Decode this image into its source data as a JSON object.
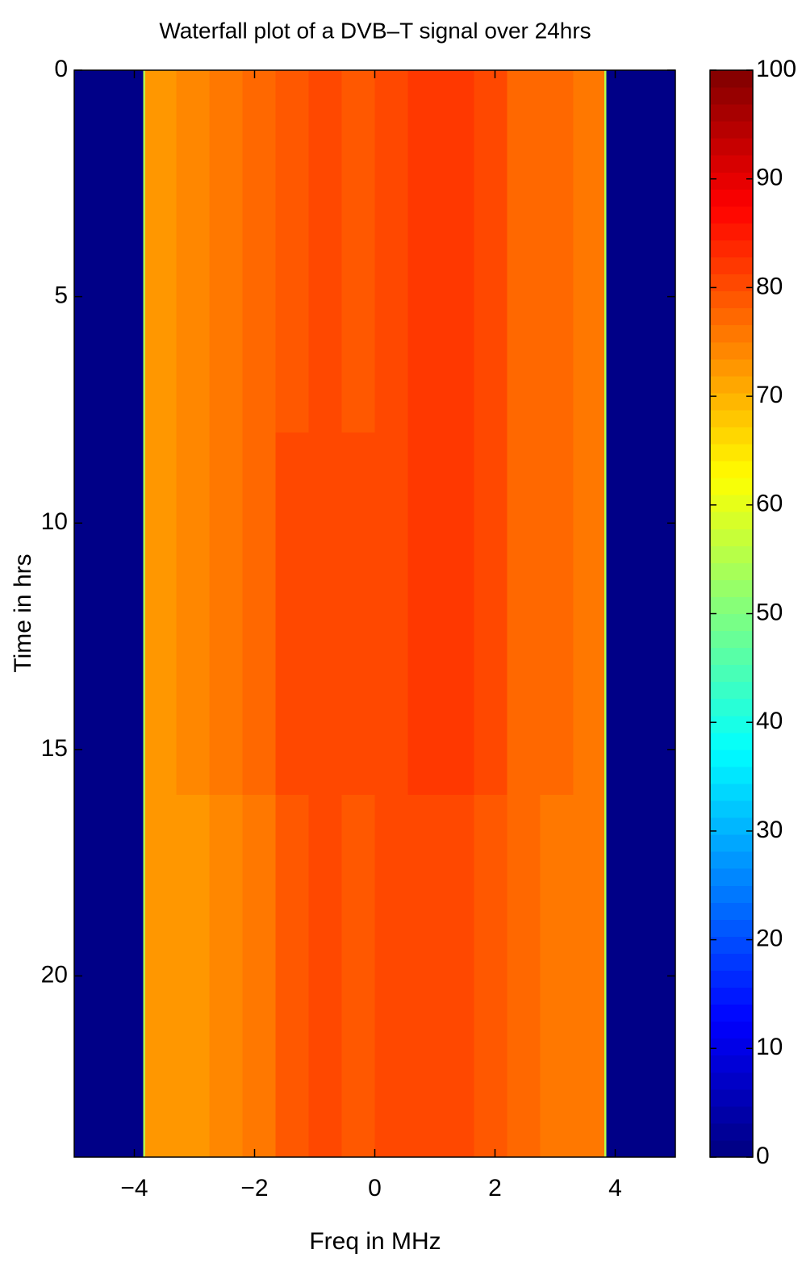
{
  "chart_data": {
    "type": "heatmap",
    "title": "Waterfall plot of a DVB–T signal over 24hrs",
    "x_label": "Freq in MHz",
    "y_label": "Time in hrs",
    "colormap": "jet",
    "x_edges": [
      -5,
      -3.85,
      -3.82,
      -3.3,
      -2.75,
      -2.2,
      -1.65,
      -1.1,
      -0.55,
      0,
      0.55,
      1.1,
      1.65,
      2.2,
      2.75,
      3.3,
      3.82,
      3.85,
      5
    ],
    "y_edges": [
      0,
      8,
      16,
      24
    ],
    "z": [
      [
        0,
        55,
        73,
        74,
        75,
        77,
        79,
        81,
        79,
        80,
        82,
        82,
        80,
        78,
        77,
        76,
        55,
        0
      ],
      [
        0,
        55,
        73,
        74,
        75,
        77,
        80,
        81,
        80,
        81,
        82,
        82,
        80,
        78,
        77,
        76,
        55,
        0
      ],
      [
        0,
        55,
        73,
        73,
        74,
        76,
        79,
        80,
        79,
        80,
        81,
        81,
        79,
        77,
        76,
        75,
        55,
        0
      ]
    ],
    "xlim": [
      -5,
      5
    ],
    "ylim": [
      0,
      24
    ],
    "clim": [
      0,
      100
    ],
    "xticks": [
      {
        "value": -4,
        "label": "−4"
      },
      {
        "value": -2,
        "label": "−2"
      },
      0,
      2,
      4
    ],
    "yticks": [
      0,
      5,
      10,
      15,
      20
    ],
    "cticks": [
      0,
      10,
      20,
      30,
      40,
      50,
      60,
      70,
      80,
      90,
      100
    ]
  }
}
